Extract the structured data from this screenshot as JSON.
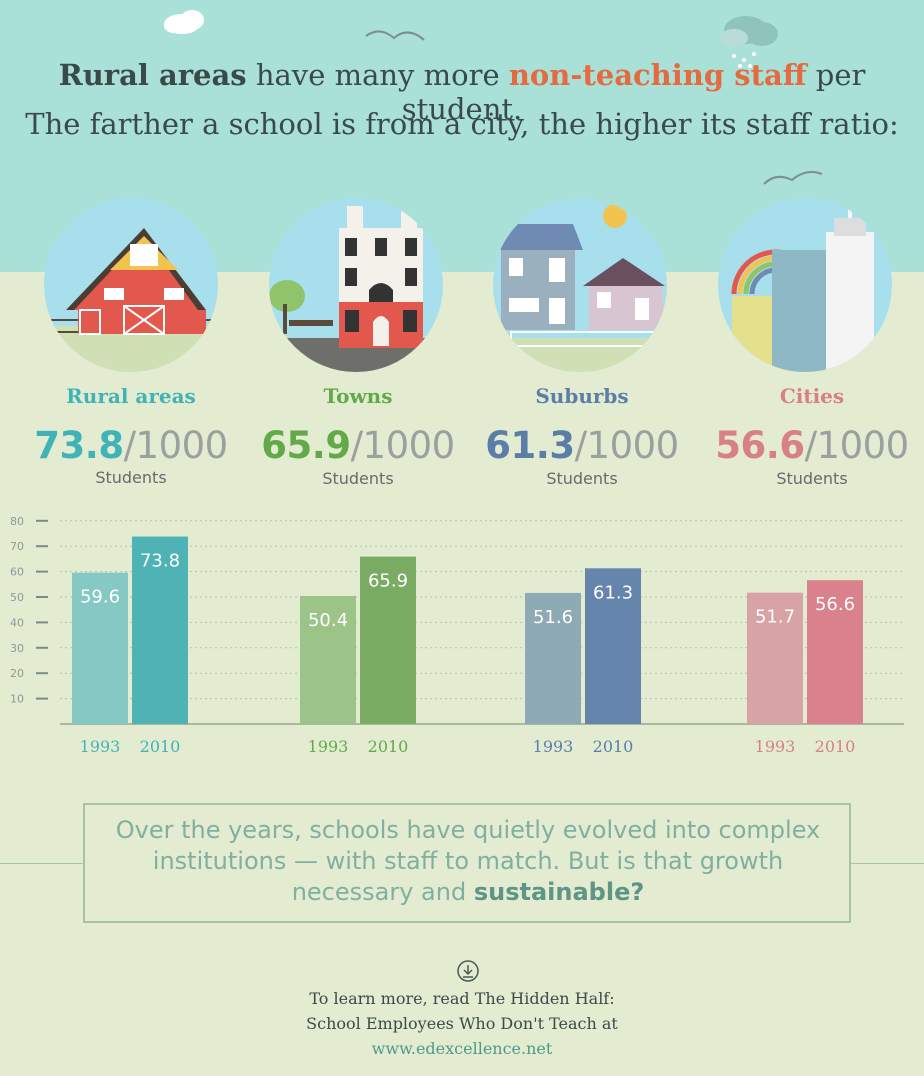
{
  "title": {
    "line1_strong": "Rural areas",
    "line1_mid": " have many more ",
    "line1_accent": "non-teaching staff",
    "line1_end": " per student.",
    "line2": "The farther a school is from a city, the higher its staff ratio:"
  },
  "categories": [
    {
      "name": "Rural areas",
      "ratio": "73.8",
      "denominator": "/1000",
      "unit": "Students",
      "color": "#3fb3b6",
      "icon": "barn-icon"
    },
    {
      "name": "Towns",
      "ratio": "65.9",
      "denominator": "/1000",
      "unit": "Students",
      "color": "#62a94a",
      "icon": "townhouse-icon"
    },
    {
      "name": "Suburbs",
      "ratio": "61.3",
      "denominator": "/1000",
      "unit": "Students",
      "color": "#5a7ea8",
      "icon": "suburban-houses-icon"
    },
    {
      "name": "Cities",
      "ratio": "56.6",
      "denominator": "/1000",
      "unit": "Students",
      "color": "#d97f86",
      "icon": "skyscrapers-icon"
    }
  ],
  "chart_data": {
    "type": "bar",
    "categories": [
      "Rural areas",
      "Towns",
      "Suburbs",
      "Cities"
    ],
    "series": [
      {
        "name": "1993",
        "values": [
          59.6,
          50.4,
          51.6,
          51.7
        ]
      },
      {
        "name": "2010",
        "values": [
          73.8,
          65.9,
          61.3,
          56.6
        ]
      }
    ],
    "bar_colors": {
      "1993": [
        "#86c9c4",
        "#9cc488",
        "#8eaab5",
        "#d7a3a4"
      ],
      "2010": [
        "#4fb3b5",
        "#7aab62",
        "#6585ac",
        "#d9818c"
      ]
    },
    "label_colors": [
      "#3fb3b6",
      "#62a94a",
      "#5a7ea8",
      "#d97f86"
    ],
    "yticks": [
      10,
      20,
      30,
      40,
      50,
      60,
      70,
      80
    ],
    "ylim": [
      0,
      80
    ],
    "grid": true,
    "gridline_style": "dotted"
  },
  "note": {
    "text": "Over the years, schools have quietly evolved into complex institutions — with staff to match. But is that growth necessary and ",
    "emphasis": "sustainable?"
  },
  "footer": {
    "line1": "To learn more, read The Hidden Half:",
    "line2": "School Employees Who Don't Teach at",
    "url": "www.edexcellence.net"
  }
}
